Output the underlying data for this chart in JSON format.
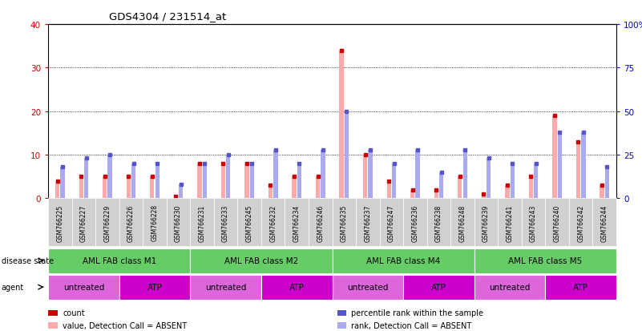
{
  "title": "GDS4304 / 231514_at",
  "samples": [
    "GSM766225",
    "GSM766227",
    "GSM766229",
    "GSM766226",
    "GSM766228",
    "GSM766230",
    "GSM766231",
    "GSM766233",
    "GSM766245",
    "GSM766232",
    "GSM766234",
    "GSM766246",
    "GSM766235",
    "GSM766237",
    "GSM766247",
    "GSM766236",
    "GSM766238",
    "GSM766248",
    "GSM766239",
    "GSM766241",
    "GSM766243",
    "GSM766240",
    "GSM766242",
    "GSM766244"
  ],
  "absent_count": [
    4,
    5,
    5,
    5,
    5,
    0.5,
    8,
    8,
    8,
    3,
    5,
    5,
    34,
    10,
    4,
    2,
    2,
    5,
    1,
    3,
    5,
    19,
    13,
    3
  ],
  "absent_rank_pct": [
    18,
    23,
    25,
    20,
    20,
    8,
    20,
    25,
    20,
    28,
    20,
    28,
    50,
    28,
    20,
    28,
    15,
    28,
    23,
    20,
    20,
    38,
    38,
    18
  ],
  "count_dot": [
    4,
    5,
    5,
    5,
    5,
    0.5,
    8,
    8,
    8,
    3,
    5,
    5,
    34,
    10,
    4,
    2,
    2,
    5,
    1,
    3,
    5,
    19,
    13,
    3
  ],
  "rank_dot_pct": [
    18,
    23,
    25,
    20,
    20,
    8,
    20,
    25,
    20,
    28,
    20,
    28,
    50,
    28,
    20,
    28,
    15,
    28,
    23,
    20,
    20,
    38,
    38,
    18
  ],
  "disease_groups": [
    {
      "label": "AML FAB class M1",
      "start": 0,
      "end": 6,
      "color": "#66cc66"
    },
    {
      "label": "AML FAB class M2",
      "start": 6,
      "end": 12,
      "color": "#66cc66"
    },
    {
      "label": "AML FAB class M4",
      "start": 12,
      "end": 18,
      "color": "#66cc66"
    },
    {
      "label": "AML FAB class M5",
      "start": 18,
      "end": 24,
      "color": "#66cc66"
    }
  ],
  "agent_groups": [
    {
      "label": "untreated",
      "start": 0,
      "end": 3,
      "color": "#dd66dd"
    },
    {
      "label": "ATP",
      "start": 3,
      "end": 6,
      "color": "#cc00cc"
    },
    {
      "label": "untreated",
      "start": 6,
      "end": 9,
      "color": "#dd66dd"
    },
    {
      "label": "ATP",
      "start": 9,
      "end": 12,
      "color": "#cc00cc"
    },
    {
      "label": "untreated",
      "start": 12,
      "end": 15,
      "color": "#dd66dd"
    },
    {
      "label": "ATP",
      "start": 15,
      "end": 18,
      "color": "#cc00cc"
    },
    {
      "label": "untreated",
      "start": 18,
      "end": 21,
      "color": "#dd66dd"
    },
    {
      "label": "ATP",
      "start": 21,
      "end": 24,
      "color": "#cc00cc"
    }
  ],
  "ylim_left": [
    0,
    40
  ],
  "ylim_right": [
    0,
    100
  ],
  "yticks_left": [
    0,
    10,
    20,
    30,
    40
  ],
  "yticks_right": [
    0,
    25,
    50,
    75,
    100
  ],
  "ytick_labels_right": [
    "0",
    "25",
    "50",
    "75",
    "100%"
  ],
  "bar_color_count": "#ffaaaa",
  "bar_color_rank": "#aaaaee",
  "count_dot_color": "#cc0000",
  "rank_dot_color": "#5555cc",
  "label_color_left": "#cc0000",
  "label_color_right": "#0000cc",
  "legend_items": [
    {
      "label": "count",
      "color": "#cc0000"
    },
    {
      "label": "percentile rank within the sample",
      "color": "#5555cc"
    },
    {
      "label": "value, Detection Call = ABSENT",
      "color": "#ffaaaa"
    },
    {
      "label": "rank, Detection Call = ABSENT",
      "color": "#aaaaee"
    }
  ]
}
